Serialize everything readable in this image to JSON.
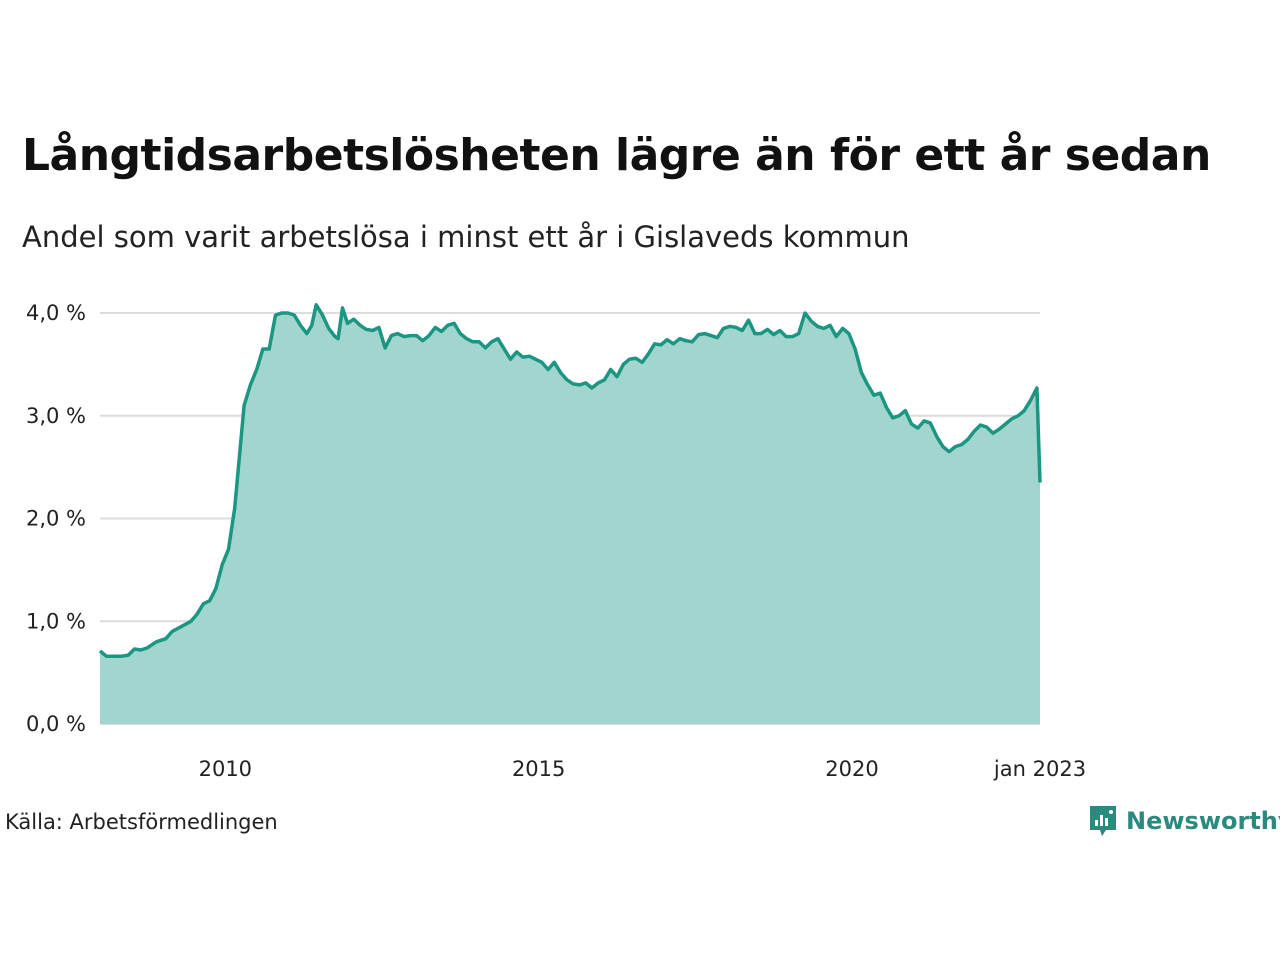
{
  "title": "Långtidsarbetslösheten lägre än för ett år sedan",
  "subtitle": "Andel som varit arbetslösa i minst ett år i Gislaveds kommun",
  "source": "Källa: Arbetsförmedlingen",
  "brand": "Newsworthy",
  "colors": {
    "series1_line": "#1a9683",
    "series1_fill": "#a3d5cf",
    "series2_line": "#2b4f4a",
    "series2_fill": "#729f98",
    "grid": "#dcdcdc",
    "brand": "#2a8a7e"
  },
  "chart_data": {
    "type": "area",
    "title": "Långtidsarbetslösheten lägre än för ett år sedan",
    "subtitle": "Andel som varit arbetslösa i minst ett år i Gislaveds kommun",
    "xlabel": "",
    "ylabel": "",
    "ylim": [
      0,
      4
    ],
    "xlim": [
      2008.0,
      2023.0
    ],
    "grid": true,
    "yticks": [
      {
        "value": 0,
        "label": "0,0 %"
      },
      {
        "value": 1,
        "label": "1,0 %"
      },
      {
        "value": 2,
        "label": "2,0 %"
      },
      {
        "value": 3,
        "label": "3,0 %"
      },
      {
        "value": 4,
        "label": "4,0 %"
      }
    ],
    "xticks": [
      {
        "value": 2010,
        "label": "2010"
      },
      {
        "value": 2015,
        "label": "2015"
      },
      {
        "value": 2020,
        "label": "2020"
      },
      {
        "value": 2023.0,
        "label": "jan 2023"
      }
    ],
    "series": [
      {
        "values": [
          [
            2008.0,
            0.71
          ],
          [
            2008.1,
            0.66
          ],
          [
            2008.2,
            0.66
          ],
          [
            2008.35,
            0.66
          ],
          [
            2008.45,
            0.67
          ],
          [
            2008.55,
            0.73
          ],
          [
            2008.65,
            0.72
          ],
          [
            2008.75,
            0.74
          ],
          [
            2008.9,
            0.8
          ],
          [
            2009.05,
            0.83
          ],
          [
            2009.15,
            0.9
          ],
          [
            2009.3,
            0.95
          ],
          [
            2009.45,
            1.0
          ],
          [
            2009.55,
            1.07
          ],
          [
            2009.65,
            1.17
          ],
          [
            2009.75,
            1.2
          ],
          [
            2009.85,
            1.32
          ],
          [
            2009.95,
            1.55
          ],
          [
            2010.05,
            1.7
          ],
          [
            2010.15,
            2.1
          ],
          [
            2010.3,
            3.1
          ],
          [
            2010.4,
            3.3
          ],
          [
            2010.5,
            3.45
          ],
          [
            2010.6,
            3.65
          ],
          [
            2010.7,
            3.65
          ],
          [
            2010.8,
            3.98
          ],
          [
            2010.9,
            4.0
          ],
          [
            2011.0,
            4.0
          ],
          [
            2011.1,
            3.98
          ],
          [
            2011.2,
            3.88
          ],
          [
            2011.3,
            3.8
          ],
          [
            2011.38,
            3.88
          ],
          [
            2011.45,
            4.08
          ],
          [
            2011.55,
            3.98
          ],
          [
            2011.65,
            3.85
          ],
          [
            2011.75,
            3.77
          ],
          [
            2011.8,
            3.75
          ],
          [
            2011.87,
            4.05
          ],
          [
            2011.95,
            3.9
          ],
          [
            2012.05,
            3.94
          ],
          [
            2012.15,
            3.88
          ],
          [
            2012.25,
            3.84
          ],
          [
            2012.35,
            3.83
          ],
          [
            2012.45,
            3.86
          ],
          [
            2012.55,
            3.66
          ],
          [
            2012.65,
            3.78
          ],
          [
            2012.75,
            3.8
          ],
          [
            2012.85,
            3.77
          ],
          [
            2012.95,
            3.78
          ],
          [
            2013.05,
            3.78
          ],
          [
            2013.15,
            3.73
          ],
          [
            2013.25,
            3.78
          ],
          [
            2013.35,
            3.86
          ],
          [
            2013.45,
            3.82
          ],
          [
            2013.55,
            3.88
          ],
          [
            2013.65,
            3.9
          ],
          [
            2013.75,
            3.8
          ],
          [
            2013.85,
            3.75
          ],
          [
            2013.95,
            3.72
          ],
          [
            2014.05,
            3.72
          ],
          [
            2014.15,
            3.66
          ],
          [
            2014.25,
            3.72
          ],
          [
            2014.35,
            3.75
          ],
          [
            2014.45,
            3.65
          ],
          [
            2014.55,
            3.55
          ],
          [
            2014.65,
            3.62
          ],
          [
            2014.75,
            3.57
          ],
          [
            2014.85,
            3.58
          ],
          [
            2014.95,
            3.55
          ],
          [
            2015.05,
            3.52
          ],
          [
            2015.15,
            3.45
          ],
          [
            2015.25,
            3.52
          ],
          [
            2015.35,
            3.42
          ],
          [
            2015.45,
            3.35
          ],
          [
            2015.55,
            3.31
          ],
          [
            2015.65,
            3.3
          ],
          [
            2015.75,
            3.32
          ],
          [
            2015.85,
            3.27
          ],
          [
            2015.95,
            3.32
          ],
          [
            2016.05,
            3.35
          ],
          [
            2016.15,
            3.45
          ],
          [
            2016.25,
            3.38
          ],
          [
            2016.35,
            3.5
          ],
          [
            2016.45,
            3.55
          ],
          [
            2016.55,
            3.56
          ],
          [
            2016.65,
            3.52
          ],
          [
            2016.75,
            3.6
          ],
          [
            2016.85,
            3.7
          ],
          [
            2016.95,
            3.69
          ],
          [
            2017.05,
            3.74
          ],
          [
            2017.15,
            3.7
          ],
          [
            2017.25,
            3.75
          ],
          [
            2017.35,
            3.73
          ],
          [
            2017.45,
            3.72
          ],
          [
            2017.55,
            3.79
          ],
          [
            2017.65,
            3.8
          ],
          [
            2017.75,
            3.78
          ],
          [
            2017.85,
            3.76
          ],
          [
            2017.95,
            3.85
          ],
          [
            2018.05,
            3.87
          ],
          [
            2018.15,
            3.86
          ],
          [
            2018.25,
            3.83
          ],
          [
            2018.35,
            3.93
          ],
          [
            2018.45,
            3.8
          ],
          [
            2018.55,
            3.8
          ],
          [
            2018.65,
            3.84
          ],
          [
            2018.75,
            3.79
          ],
          [
            2018.85,
            3.83
          ],
          [
            2018.95,
            3.77
          ],
          [
            2019.05,
            3.77
          ],
          [
            2019.15,
            3.8
          ],
          [
            2019.25,
            4.0
          ],
          [
            2019.35,
            3.92
          ],
          [
            2019.45,
            3.87
          ],
          [
            2019.55,
            3.85
          ],
          [
            2019.65,
            3.88
          ],
          [
            2019.75,
            3.77
          ],
          [
            2019.85,
            3.85
          ],
          [
            2019.95,
            3.8
          ],
          [
            2020.05,
            3.65
          ],
          [
            2020.15,
            3.42
          ],
          [
            2020.25,
            3.3
          ],
          [
            2020.35,
            3.2
          ],
          [
            2020.45,
            3.22
          ],
          [
            2020.55,
            3.08
          ],
          [
            2020.65,
            2.98
          ],
          [
            2020.75,
            3.0
          ],
          [
            2020.85,
            3.05
          ],
          [
            2020.95,
            2.92
          ],
          [
            2021.05,
            2.88
          ],
          [
            2021.15,
            2.95
          ],
          [
            2021.25,
            2.93
          ],
          [
            2021.35,
            2.8
          ],
          [
            2021.45,
            2.7
          ],
          [
            2021.55,
            2.65
          ],
          [
            2021.65,
            2.7
          ],
          [
            2021.75,
            2.72
          ],
          [
            2021.85,
            2.77
          ],
          [
            2021.95,
            2.85
          ],
          [
            2022.05,
            2.91
          ],
          [
            2022.15,
            2.89
          ],
          [
            2022.25,
            2.83
          ],
          [
            2022.35,
            2.87
          ],
          [
            2022.45,
            2.92
          ],
          [
            2022.55,
            2.97
          ],
          [
            2022.65,
            3.0
          ],
          [
            2022.75,
            3.05
          ],
          [
            2022.85,
            3.15
          ],
          [
            2022.95,
            3.27
          ],
          [
            2023.0,
            2.35
          ]
        ]
      }
    ]
  }
}
